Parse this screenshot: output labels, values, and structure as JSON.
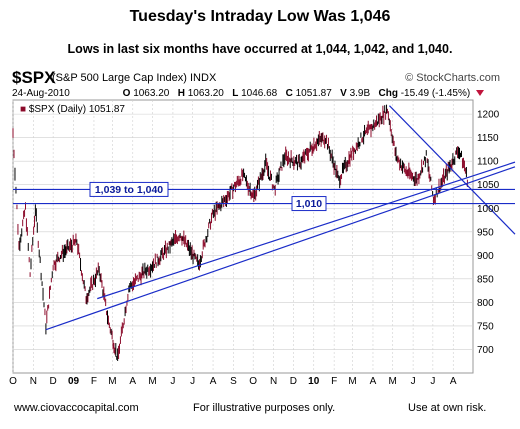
{
  "header": {
    "title": "Tuesday's Intraday Low Was 1,046",
    "subtitle": "Lows in last six months have occurred at 1,044, 1,042, and 1,040."
  },
  "ticker": {
    "symbol": "$SPX",
    "description": "(S&P 500 Large Cap Index) INDX",
    "brand": "© StockCharts.com",
    "date": "24-Aug-2010",
    "open_label": "O",
    "open": "1063.20",
    "high_label": "H",
    "high": "1063.20",
    "low_label": "L",
    "low": "1046.68",
    "close_label": "C",
    "close": "1051.87",
    "volume_label": "V",
    "volume": "3.9B",
    "change_label": "Chg",
    "change": "-15.49 (-1.45%)",
    "legend": "$SPX (Daily) 1051.87"
  },
  "footer": {
    "left": "www.ciovaccocapital.com",
    "center": "For illustrative purposes only.",
    "right": "Use at own risk."
  },
  "colors": {
    "bars": "#8b0a2a",
    "lines": "#1a2cc8",
    "grid": "#cfcfcf",
    "label_box": "#1a2cc8"
  },
  "chart_data": {
    "type": "line",
    "title": "$SPX (Daily)",
    "x_ticks": [
      "O",
      "N",
      "D",
      "09",
      "F",
      "M",
      "A",
      "M",
      "J",
      "J",
      "A",
      "S",
      "O",
      "N",
      "D",
      "10",
      "F",
      "M",
      "A",
      "M",
      "J",
      "J",
      "A"
    ],
    "y_ticks": [
      700,
      750,
      800,
      850,
      900,
      950,
      1000,
      1050,
      1100,
      1150,
      1200
    ],
    "ylim": [
      650,
      1230
    ],
    "grid": true,
    "series": [
      {
        "name": "$SPX",
        "x": [
          "2008-10-01",
          "2008-10-10",
          "2008-10-20",
          "2008-10-27",
          "2008-11-04",
          "2008-11-20",
          "2008-12-01",
          "2008-12-15",
          "2009-01-06",
          "2009-01-20",
          "2009-02-09",
          "2009-02-23",
          "2009-03-09",
          "2009-03-26",
          "2009-04-15",
          "2009-05-01",
          "2009-05-15",
          "2009-06-12",
          "2009-07-10",
          "2009-07-31",
          "2009-08-20",
          "2009-09-15",
          "2009-10-02",
          "2009-10-20",
          "2009-11-02",
          "2009-11-18",
          "2009-12-10",
          "2010-01-04",
          "2010-01-19",
          "2010-02-08",
          "2010-02-25",
          "2010-03-15",
          "2010-04-05",
          "2010-04-23",
          "2010-05-06",
          "2010-05-20",
          "2010-06-07",
          "2010-06-21",
          "2010-07-02",
          "2010-07-20",
          "2010-08-09",
          "2010-08-18",
          "2010-08-24"
        ],
        "values": [
          1160,
          920,
          1000,
          860,
          1000,
          750,
          880,
          905,
          930,
          810,
          870,
          760,
          680,
          830,
          860,
          880,
          900,
          945,
          880,
          985,
          1020,
          1070,
          1025,
          1095,
          1040,
          1110,
          1095,
          1140,
          1150,
          1060,
          1110,
          1150,
          1180,
          1210,
          1110,
          1080,
          1060,
          1110,
          1020,
          1070,
          1125,
          1090,
          1052
        ]
      }
    ],
    "annotations": [
      {
        "text": "1,039 to 1,040",
        "y": 1040
      },
      {
        "text": "1,010",
        "y": 1010
      }
    ]
  }
}
